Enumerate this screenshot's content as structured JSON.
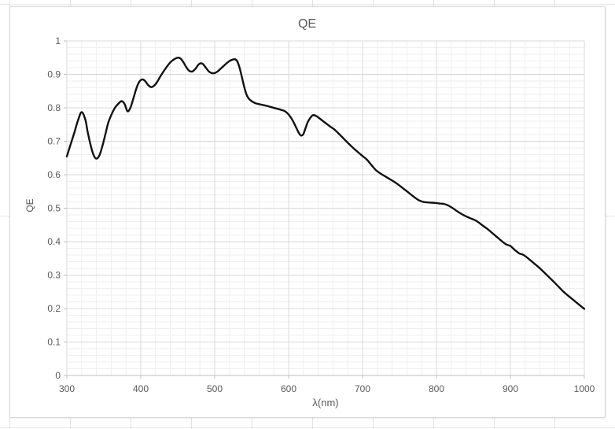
{
  "chart_data": {
    "type": "line",
    "title": "QE",
    "xlabel": "λ(nm)",
    "ylabel": "QE",
    "xlim": [
      300,
      1000
    ],
    "ylim": [
      0,
      1
    ],
    "x_ticks": [
      300,
      400,
      500,
      600,
      700,
      800,
      900,
      1000
    ],
    "x_tick_labels": [
      "300",
      "400",
      "500",
      "600",
      "700",
      "800",
      "900",
      "1000"
    ],
    "y_ticks": [
      0,
      0.1,
      0.2,
      0.3,
      0.4,
      0.5,
      0.6,
      0.7,
      0.8,
      0.9,
      1
    ],
    "y_tick_labels": [
      "0",
      "0.1",
      "0.2",
      "0.3",
      "0.4",
      "0.5",
      "0.6",
      "0.7",
      "0.8",
      "0.9",
      "1"
    ],
    "x_minor_step": 20,
    "y_minor_step": 0.02,
    "grid": "major+minor, both axes",
    "legend": "none",
    "series": [
      {
        "name": "QE",
        "color": "#111111",
        "x": [
          300,
          305,
          310,
          315,
          320,
          325,
          328,
          332,
          336,
          340,
          344,
          348,
          352,
          356,
          360,
          365,
          370,
          374,
          378,
          382,
          386,
          390,
          394,
          398,
          402,
          406,
          410,
          414,
          418,
          422,
          426,
          430,
          435,
          440,
          445,
          450,
          454,
          458,
          462,
          466,
          470,
          474,
          478,
          481,
          484,
          488,
          492,
          496,
          500,
          504,
          508,
          512,
          516,
          520,
          524,
          528,
          531,
          534,
          537,
          540,
          543,
          546,
          550,
          555,
          560,
          570,
          580,
          590,
          595,
          600,
          605,
          610,
          614,
          617,
          620,
          623,
          626,
          630,
          633,
          637,
          642,
          648,
          655,
          662,
          670,
          678,
          686,
          694,
          700,
          706,
          712,
          718,
          724,
          730,
          736,
          742,
          748,
          755,
          762,
          770,
          776,
          782,
          790,
          797,
          804,
          810,
          816,
          822,
          830,
          838,
          846,
          854,
          862,
          870,
          878,
          886,
          894,
          900,
          906,
          912,
          918,
          925,
          932,
          940,
          948,
          956,
          964,
          972,
          980,
          990,
          1000
        ],
        "y": [
          0.655,
          0.69,
          0.725,
          0.762,
          0.787,
          0.765,
          0.73,
          0.69,
          0.66,
          0.648,
          0.658,
          0.685,
          0.72,
          0.755,
          0.778,
          0.8,
          0.813,
          0.82,
          0.812,
          0.79,
          0.8,
          0.828,
          0.858,
          0.878,
          0.885,
          0.88,
          0.868,
          0.862,
          0.866,
          0.877,
          0.892,
          0.906,
          0.922,
          0.936,
          0.945,
          0.95,
          0.947,
          0.935,
          0.92,
          0.91,
          0.909,
          0.917,
          0.929,
          0.933,
          0.931,
          0.92,
          0.909,
          0.904,
          0.904,
          0.909,
          0.917,
          0.925,
          0.933,
          0.94,
          0.944,
          0.945,
          0.937,
          0.917,
          0.89,
          0.862,
          0.84,
          0.828,
          0.82,
          0.814,
          0.811,
          0.806,
          0.8,
          0.794,
          0.79,
          0.78,
          0.764,
          0.742,
          0.724,
          0.717,
          0.722,
          0.74,
          0.758,
          0.772,
          0.778,
          0.776,
          0.768,
          0.758,
          0.746,
          0.735,
          0.718,
          0.7,
          0.683,
          0.667,
          0.656,
          0.645,
          0.629,
          0.614,
          0.604,
          0.596,
          0.588,
          0.58,
          0.571,
          0.559,
          0.547,
          0.533,
          0.524,
          0.519,
          0.517,
          0.516,
          0.514,
          0.513,
          0.508,
          0.5,
          0.488,
          0.478,
          0.47,
          0.462,
          0.449,
          0.436,
          0.421,
          0.406,
          0.392,
          0.387,
          0.375,
          0.365,
          0.36,
          0.348,
          0.335,
          0.32,
          0.303,
          0.286,
          0.268,
          0.25,
          0.235,
          0.217,
          0.199
        ]
      }
    ],
    "colors": {
      "line": "#111111",
      "text": "#595959",
      "minor_grid": "#efefef",
      "major_grid": "#d9d9d9",
      "axis": "#bfbfbf",
      "chart_border": "#d5d5d5",
      "background": "#ffffff"
    }
  }
}
